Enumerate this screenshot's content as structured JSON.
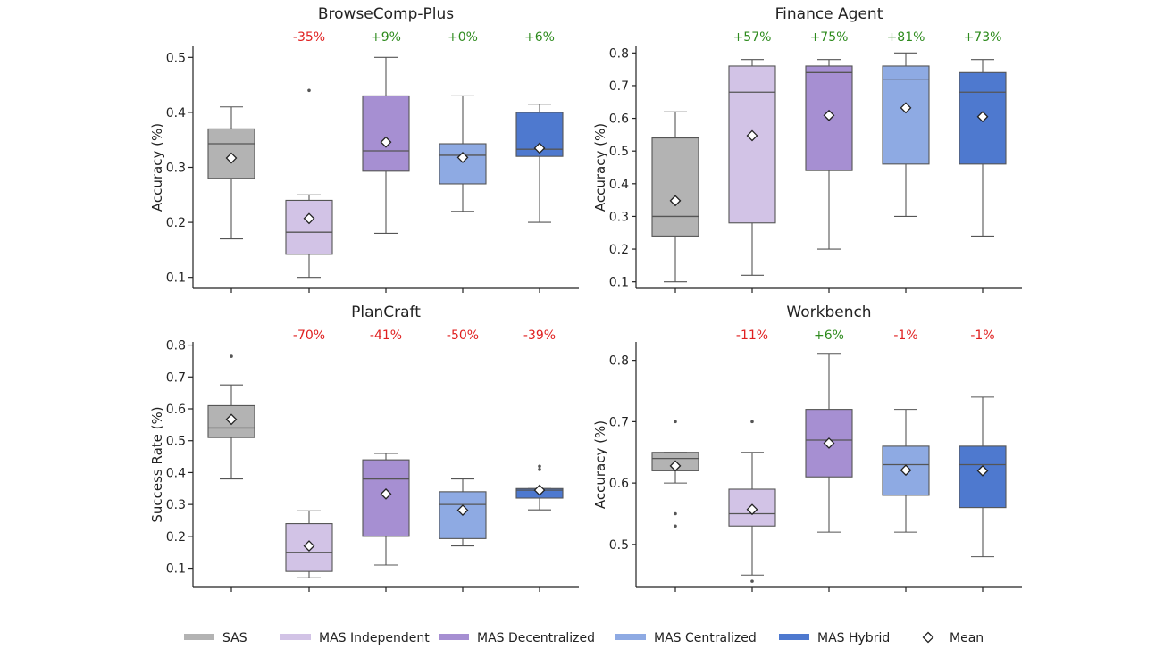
{
  "groups": [
    "SAS",
    "MAS Independent",
    "MAS Decentralized",
    "MAS Centralized",
    "MAS Hybrid"
  ],
  "colors": {
    "SAS": "#b3b3b3",
    "MAS Independent": "#d2c3e6",
    "MAS Decentralized": "#a68fd2",
    "MAS Centralized": "#8eaae3",
    "MAS Hybrid": "#4e79cf",
    "positive": "#2e8b1e",
    "negative": "#e02020"
  },
  "legend": {
    "items": [
      "SAS",
      "MAS Independent",
      "MAS Decentralized",
      "MAS Centralized",
      "MAS Hybrid"
    ],
    "mean_label": "Mean"
  },
  "chart_data": [
    {
      "type": "box",
      "title": "BrowseComp-Plus",
      "ylabel": "Accuracy (%)",
      "ylim": [
        0.08,
        0.52
      ],
      "yticks": [
        "0.1",
        "0.2",
        "0.3",
        "0.4",
        "0.5"
      ],
      "deltas": [
        "",
        "-35%",
        "+9%",
        "+0%",
        "+6%"
      ],
      "boxes": [
        {
          "q1": 0.28,
          "median": 0.343,
          "q3": 0.37,
          "whislo": 0.17,
          "whishi": 0.41,
          "mean": 0.317,
          "fliers": []
        },
        {
          "q1": 0.142,
          "median": 0.182,
          "q3": 0.24,
          "whislo": 0.1,
          "whishi": 0.25,
          "mean": 0.207,
          "fliers": [
            0.44
          ]
        },
        {
          "q1": 0.293,
          "median": 0.33,
          "q3": 0.43,
          "whislo": 0.18,
          "whishi": 0.5,
          "mean": 0.346,
          "fliers": []
        },
        {
          "q1": 0.27,
          "median": 0.322,
          "q3": 0.343,
          "whislo": 0.22,
          "whishi": 0.43,
          "mean": 0.318,
          "fliers": []
        },
        {
          "q1": 0.32,
          "median": 0.333,
          "q3": 0.4,
          "whislo": 0.2,
          "whishi": 0.415,
          "mean": 0.335,
          "fliers": []
        }
      ]
    },
    {
      "type": "box",
      "title": "Finance Agent",
      "ylabel": "Accuracy (%)",
      "ylim": [
        0.08,
        0.82
      ],
      "yticks": [
        "0.1",
        "0.2",
        "0.3",
        "0.4",
        "0.5",
        "0.6",
        "0.7",
        "0.8"
      ],
      "deltas": [
        "",
        "+57%",
        "+75%",
        "+81%",
        "+73%"
      ],
      "boxes": [
        {
          "q1": 0.24,
          "median": 0.3,
          "q3": 0.54,
          "whislo": 0.1,
          "whishi": 0.62,
          "mean": 0.348,
          "fliers": []
        },
        {
          "q1": 0.28,
          "median": 0.68,
          "q3": 0.76,
          "whislo": 0.12,
          "whishi": 0.78,
          "mean": 0.547,
          "fliers": []
        },
        {
          "q1": 0.44,
          "median": 0.74,
          "q3": 0.76,
          "whislo": 0.2,
          "whishi": 0.78,
          "mean": 0.609,
          "fliers": []
        },
        {
          "q1": 0.46,
          "median": 0.72,
          "q3": 0.76,
          "whislo": 0.3,
          "whishi": 0.8,
          "mean": 0.632,
          "fliers": []
        },
        {
          "q1": 0.46,
          "median": 0.68,
          "q3": 0.74,
          "whislo": 0.24,
          "whishi": 0.78,
          "mean": 0.605,
          "fliers": []
        }
      ]
    },
    {
      "type": "box",
      "title": "PlanCraft",
      "ylabel": "Success Rate (%)",
      "ylim": [
        0.04,
        0.81
      ],
      "yticks": [
        "0.1",
        "0.2",
        "0.3",
        "0.4",
        "0.5",
        "0.6",
        "0.7",
        "0.8"
      ],
      "deltas": [
        "",
        "-70%",
        "-41%",
        "-50%",
        "-39%"
      ],
      "boxes": [
        {
          "q1": 0.51,
          "median": 0.54,
          "q3": 0.61,
          "whislo": 0.38,
          "whishi": 0.675,
          "mean": 0.567,
          "fliers": [
            0.765
          ]
        },
        {
          "q1": 0.09,
          "median": 0.15,
          "q3": 0.24,
          "whislo": 0.07,
          "whishi": 0.28,
          "mean": 0.17,
          "fliers": []
        },
        {
          "q1": 0.2,
          "median": 0.38,
          "q3": 0.44,
          "whislo": 0.11,
          "whishi": 0.46,
          "mean": 0.333,
          "fliers": []
        },
        {
          "q1": 0.193,
          "median": 0.3,
          "q3": 0.34,
          "whislo": 0.17,
          "whishi": 0.38,
          "mean": 0.282,
          "fliers": []
        },
        {
          "q1": 0.32,
          "median": 0.345,
          "q3": 0.35,
          "whislo": 0.283,
          "whishi": 0.35,
          "mean": 0.345,
          "fliers": [
            0.41,
            0.42
          ]
        }
      ]
    },
    {
      "type": "box",
      "title": "Workbench",
      "ylabel": "Accuracy (%)",
      "ylim": [
        0.43,
        0.83
      ],
      "yticks": [
        "0.5",
        "0.6",
        "0.7",
        "0.8"
      ],
      "deltas": [
        "",
        "-11%",
        "+6%",
        "-1%",
        "-1%"
      ],
      "boxes": [
        {
          "q1": 0.62,
          "median": 0.64,
          "q3": 0.65,
          "whislo": 0.6,
          "whishi": 0.65,
          "mean": 0.628,
          "fliers": [
            0.7,
            0.55,
            0.53
          ]
        },
        {
          "q1": 0.53,
          "median": 0.55,
          "q3": 0.59,
          "whislo": 0.45,
          "whishi": 0.65,
          "mean": 0.557,
          "fliers": [
            0.7,
            0.44
          ]
        },
        {
          "q1": 0.61,
          "median": 0.67,
          "q3": 0.72,
          "whislo": 0.52,
          "whishi": 0.81,
          "mean": 0.665,
          "fliers": []
        },
        {
          "q1": 0.58,
          "median": 0.63,
          "q3": 0.66,
          "whislo": 0.52,
          "whishi": 0.72,
          "mean": 0.621,
          "fliers": []
        },
        {
          "q1": 0.56,
          "median": 0.63,
          "q3": 0.66,
          "whislo": 0.48,
          "whishi": 0.74,
          "mean": 0.62,
          "fliers": []
        }
      ]
    }
  ]
}
